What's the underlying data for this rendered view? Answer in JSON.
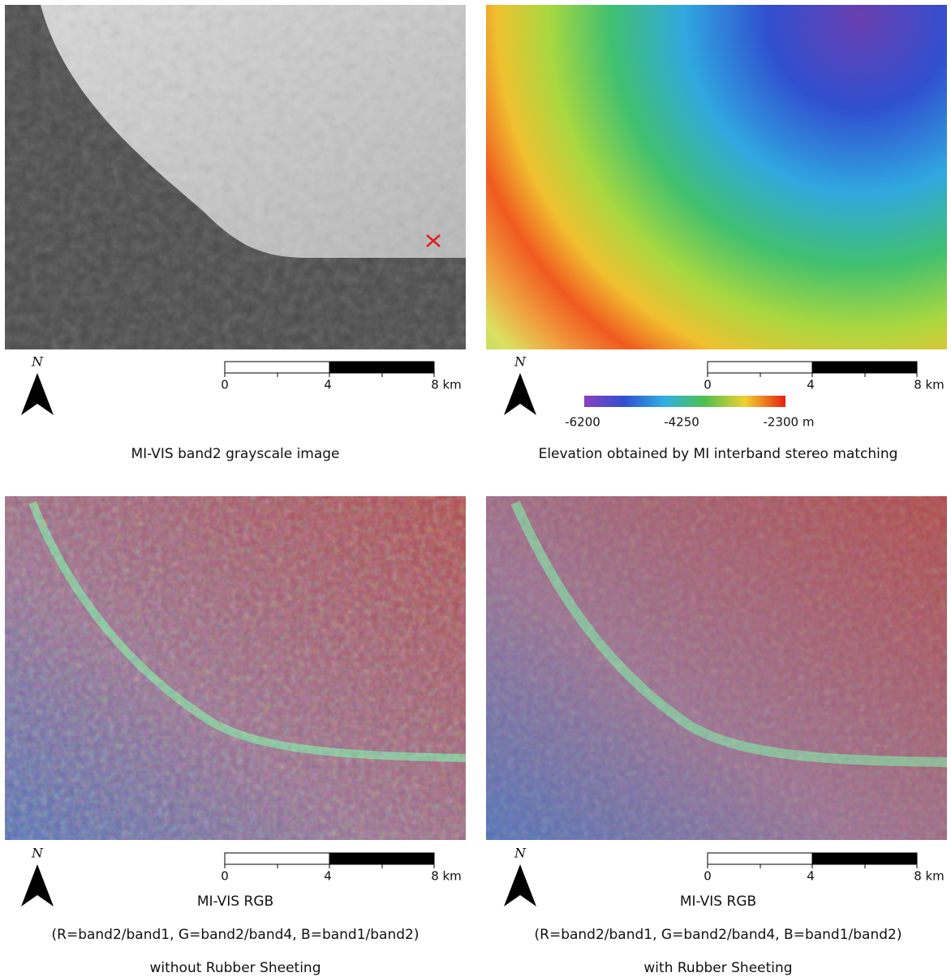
{
  "panels": [
    {
      "north": "N",
      "scale": [
        "0",
        "4",
        "8 km"
      ],
      "caption": [
        "MI-VIS band2 grayscale image"
      ]
    },
    {
      "north": "N",
      "scale": [
        "0",
        "4",
        "8 km"
      ],
      "caption": [
        "Elevation obtained by MI interband stereo matching"
      ]
    },
    {
      "north": "N",
      "scale": [
        "0",
        "4",
        "8 km"
      ],
      "caption": [
        "MI-VIS RGB",
        "(R=band2/band1, G=band2/band4, B=band1/band2)",
        "without Rubber Sheeting"
      ]
    },
    {
      "north": "N",
      "scale": [
        "0",
        "4",
        "8 km"
      ],
      "caption": [
        "MI-VIS RGB",
        "(R=band2/band1, G=band2/band4, B=band1/band2)",
        "with Rubber Sheeting"
      ]
    }
  ],
  "colorbar": {
    "labels": [
      "-6200",
      "-4250",
      "-2300 m"
    ]
  }
}
